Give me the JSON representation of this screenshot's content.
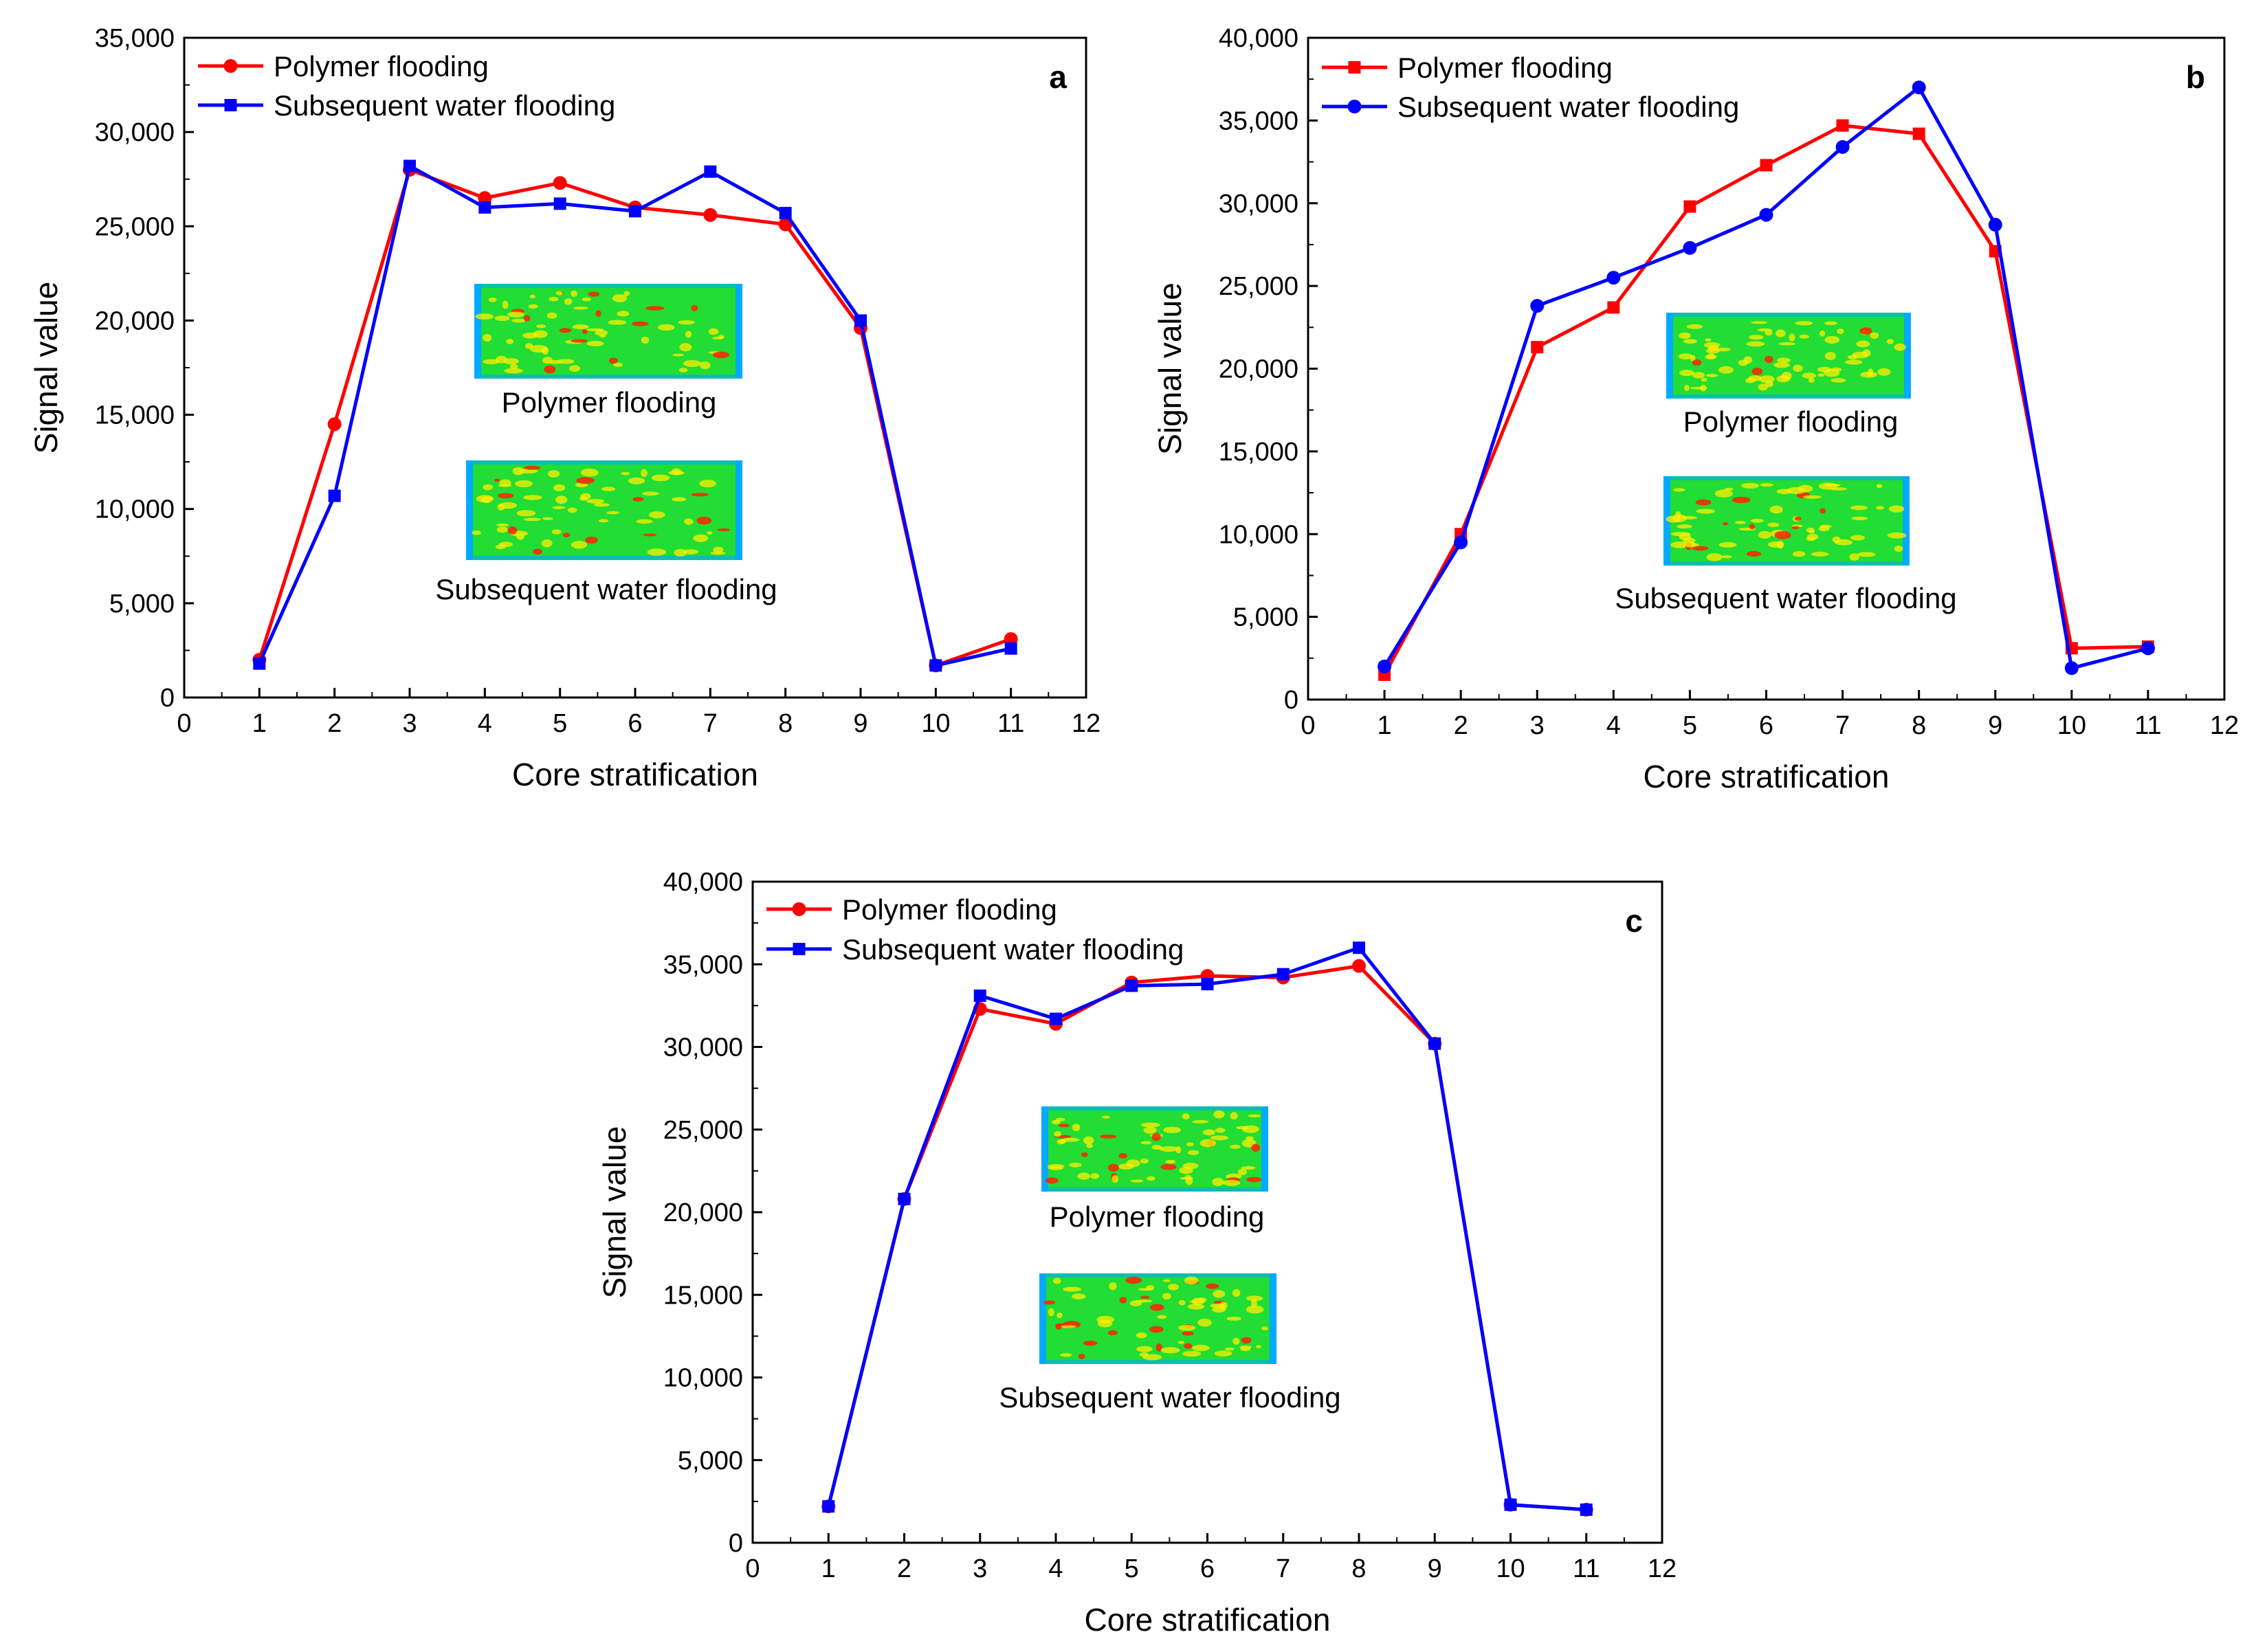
{
  "colors": {
    "polymer": "#ff0000",
    "water": "#0000ff",
    "axis": "#000000",
    "heatmap_base": "#22dd33",
    "heatmap_hot": "#ffee00",
    "heatmap_spot": "#ff2200",
    "heatmap_cool": "#00aaff"
  },
  "chart_data": [
    {
      "id": "a",
      "type": "line",
      "panel_label": "a",
      "xlabel": "Core stratification",
      "ylabel": "Signal value",
      "xlim": [
        0,
        12
      ],
      "ylim": [
        0,
        35000
      ],
      "xticks": [
        "0",
        "1",
        "2",
        "3",
        "4",
        "5",
        "6",
        "7",
        "8",
        "9",
        "10",
        "11",
        "12"
      ],
      "yticks": [
        "0",
        "5,000",
        "10,000",
        "15,000",
        "20,000",
        "25,000",
        "30,000",
        "35,000"
      ],
      "grid": false,
      "legend_position": "top-left",
      "x": [
        1,
        2,
        3,
        4,
        5,
        6,
        7,
        8,
        9,
        10,
        11
      ],
      "series": [
        {
          "name": "Polymer flooding",
          "color": "#ff0000",
          "marker": "circle",
          "values": [
            2000,
            14500,
            28000,
            26500,
            27300,
            26000,
            25600,
            25100,
            19600,
            1700,
            3100
          ]
        },
        {
          "name": "Subsequent water flooding",
          "color": "#0000ff",
          "marker": "square",
          "values": [
            1800,
            10700,
            28200,
            26000,
            26200,
            25800,
            27900,
            25700,
            20000,
            1700,
            2600
          ]
        }
      ],
      "insets": [
        {
          "caption": "Polymer flooding",
          "icon": "heatmap-image"
        },
        {
          "caption": "Subsequent water flooding",
          "icon": "heatmap-image"
        }
      ]
    },
    {
      "id": "b",
      "type": "line",
      "panel_label": "b",
      "xlabel": "Core stratification",
      "ylabel": "Signal value",
      "xlim": [
        0,
        12
      ],
      "ylim": [
        0,
        40000
      ],
      "xticks": [
        "0",
        "1",
        "2",
        "3",
        "4",
        "5",
        "6",
        "7",
        "8",
        "9",
        "10",
        "11",
        "12"
      ],
      "yticks": [
        "0",
        "5,000",
        "10,000",
        "15,000",
        "20,000",
        "25,000",
        "30,000",
        "35,000",
        "40,000"
      ],
      "grid": false,
      "legend_position": "top-left",
      "x": [
        1,
        2,
        3,
        4,
        5,
        6,
        7,
        8,
        9,
        10,
        11
      ],
      "series": [
        {
          "name": "Polymer flooding",
          "color": "#ff0000",
          "marker": "square",
          "values": [
            1500,
            10000,
            21300,
            23700,
            29800,
            32300,
            34700,
            34200,
            27100,
            3100,
            3200
          ]
        },
        {
          "name": "Subsequent water flooding",
          "color": "#0000ff",
          "marker": "circle",
          "values": [
            2000,
            9500,
            23800,
            25500,
            27300,
            29300,
            33400,
            37000,
            28700,
            1900,
            3100
          ]
        }
      ],
      "insets": [
        {
          "caption": "Polymer flooding",
          "icon": "heatmap-image"
        },
        {
          "caption": "Subsequent water flooding",
          "icon": "heatmap-image"
        }
      ]
    },
    {
      "id": "c",
      "type": "line",
      "panel_label": "c",
      "xlabel": "Core stratification",
      "ylabel": "Signal value",
      "xlim": [
        0,
        12
      ],
      "ylim": [
        0,
        40000
      ],
      "xticks": [
        "0",
        "1",
        "2",
        "3",
        "4",
        "5",
        "6",
        "7",
        "8",
        "9",
        "10",
        "11",
        "12"
      ],
      "yticks": [
        "0",
        "5,000",
        "10,000",
        "15,000",
        "20,000",
        "25,000",
        "30,000",
        "35,000",
        "40,000"
      ],
      "grid": false,
      "legend_position": "top-left",
      "x": [
        1,
        2,
        3,
        4,
        5,
        6,
        7,
        8,
        9,
        10,
        11
      ],
      "series": [
        {
          "name": "Polymer flooding",
          "color": "#ff0000",
          "marker": "circle",
          "values": [
            2200,
            20800,
            32300,
            31400,
            33900,
            34300,
            34200,
            34900,
            30200,
            2300,
            2000
          ]
        },
        {
          "name": "Subsequent water flooding",
          "color": "#0000ff",
          "marker": "square",
          "values": [
            2200,
            20800,
            33100,
            31700,
            33700,
            33800,
            34400,
            36000,
            30200,
            2300,
            2000
          ]
        }
      ],
      "insets": [
        {
          "caption": "Polymer flooding",
          "icon": "heatmap-image"
        },
        {
          "caption": "Subsequent water flooding",
          "icon": "heatmap-image"
        }
      ]
    }
  ]
}
